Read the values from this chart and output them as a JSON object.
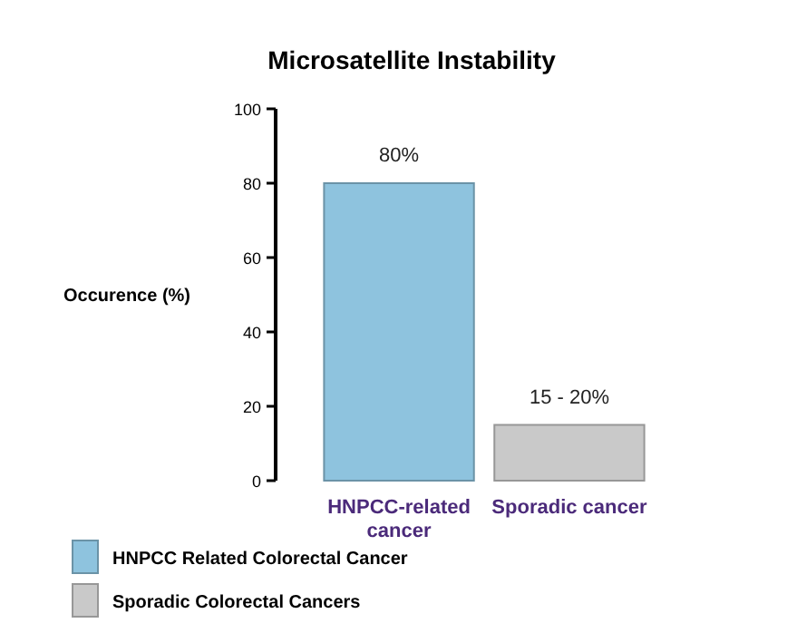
{
  "chart_data": {
    "type": "bar",
    "title": "Microsatellite Instability",
    "ylabel": "Occurence (%)",
    "categories": [
      "HNPCC-related cancer",
      "Sporadic cancer"
    ],
    "series": [
      {
        "name": "HNPCC Related Colorectal Cancer",
        "color": "#8ec3de",
        "values": [
          80,
          null
        ],
        "value_labels": [
          "80%",
          null
        ]
      },
      {
        "name": "Sporadic Colorectal Cancers",
        "color": "#c9c9c9",
        "values": [
          null,
          15
        ],
        "value_labels": [
          null,
          "15 - 20%"
        ]
      }
    ],
    "ylim": [
      0,
      100
    ],
    "yticks": [
      0,
      20,
      40,
      60,
      80,
      100
    ],
    "grid": false,
    "legend": "bottom left"
  }
}
